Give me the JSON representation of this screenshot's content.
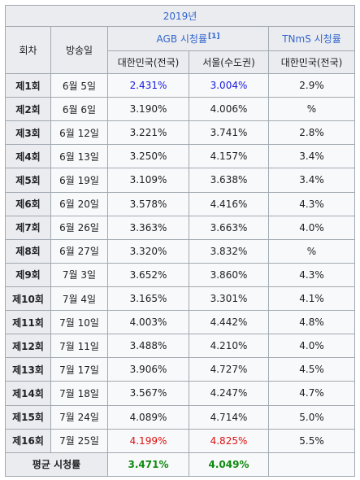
{
  "table": {
    "year_header": "2019년",
    "col_episode": "회차",
    "col_airdate": "방송일",
    "agb_label": "AGB 시청률",
    "agb_ref": "[1]",
    "tnms_label": "TNmS 시청률",
    "sub_nationwide": "대한민국(전국)",
    "sub_seoul": "서울(수도권)",
    "sub_tnms_nationwide": "대한민국(전국)",
    "rows": [
      {
        "ep": "제1회",
        "date": "6월 5일",
        "agb_nat": "2.431%",
        "agb_seoul": "3.004%",
        "tnms": "2.9%",
        "agb_nat_style": "low",
        "agb_seoul_style": "low"
      },
      {
        "ep": "제2회",
        "date": "6월 6일",
        "agb_nat": "3.190%",
        "agb_seoul": "4.006%",
        "tnms": "%"
      },
      {
        "ep": "제3회",
        "date": "6월 12일",
        "agb_nat": "3.221%",
        "agb_seoul": "3.741%",
        "tnms": "2.8%"
      },
      {
        "ep": "제4회",
        "date": "6월 13일",
        "agb_nat": "3.250%",
        "agb_seoul": "4.157%",
        "tnms": "3.4%"
      },
      {
        "ep": "제5회",
        "date": "6월 19일",
        "agb_nat": "3.109%",
        "agb_seoul": "3.638%",
        "tnms": "3.4%"
      },
      {
        "ep": "제6회",
        "date": "6월 20일",
        "agb_nat": "3.578%",
        "agb_seoul": "4.416%",
        "tnms": "4.3%"
      },
      {
        "ep": "제7회",
        "date": "6월 26일",
        "agb_nat": "3.363%",
        "agb_seoul": "3.663%",
        "tnms": "4.0%"
      },
      {
        "ep": "제8회",
        "date": "6월 27일",
        "agb_nat": "3.320%",
        "agb_seoul": "3.832%",
        "tnms": "%"
      },
      {
        "ep": "제9회",
        "date": "7월 3일",
        "agb_nat": "3.652%",
        "agb_seoul": "3.860%",
        "tnms": "4.3%"
      },
      {
        "ep": "제10회",
        "date": "7월 4일",
        "agb_nat": "3.165%",
        "agb_seoul": "3.301%",
        "tnms": "4.1%"
      },
      {
        "ep": "제11회",
        "date": "7월 10일",
        "agb_nat": "4.003%",
        "agb_seoul": "4.442%",
        "tnms": "4.8%"
      },
      {
        "ep": "제12회",
        "date": "7월 11일",
        "agb_nat": "3.488%",
        "agb_seoul": "4.210%",
        "tnms": "4.0%"
      },
      {
        "ep": "제13회",
        "date": "7월 17일",
        "agb_nat": "3.906%",
        "agb_seoul": "4.727%",
        "tnms": "4.5%"
      },
      {
        "ep": "제14회",
        "date": "7월 18일",
        "agb_nat": "3.567%",
        "agb_seoul": "4.247%",
        "tnms": "4.7%"
      },
      {
        "ep": "제15회",
        "date": "7월 24일",
        "agb_nat": "4.089%",
        "agb_seoul": "4.714%",
        "tnms": "5.0%"
      },
      {
        "ep": "제16회",
        "date": "7월 25일",
        "agb_nat": "4.199%",
        "agb_seoul": "4.825%",
        "tnms": "5.5%",
        "agb_nat_style": "high",
        "agb_seoul_style": "high"
      }
    ],
    "summary": {
      "label": "평균 시청률",
      "agb_nat": "3.471%",
      "agb_seoul": "4.049%",
      "tnms": ""
    },
    "colors": {
      "low": "#1a1adf",
      "high": "#dd1111",
      "average": "#0f8a0f",
      "link": "#3366cc",
      "header_bg": "#eaecf0",
      "cell_bg": "#f8f9fa",
      "border": "#a2a9b1"
    }
  }
}
